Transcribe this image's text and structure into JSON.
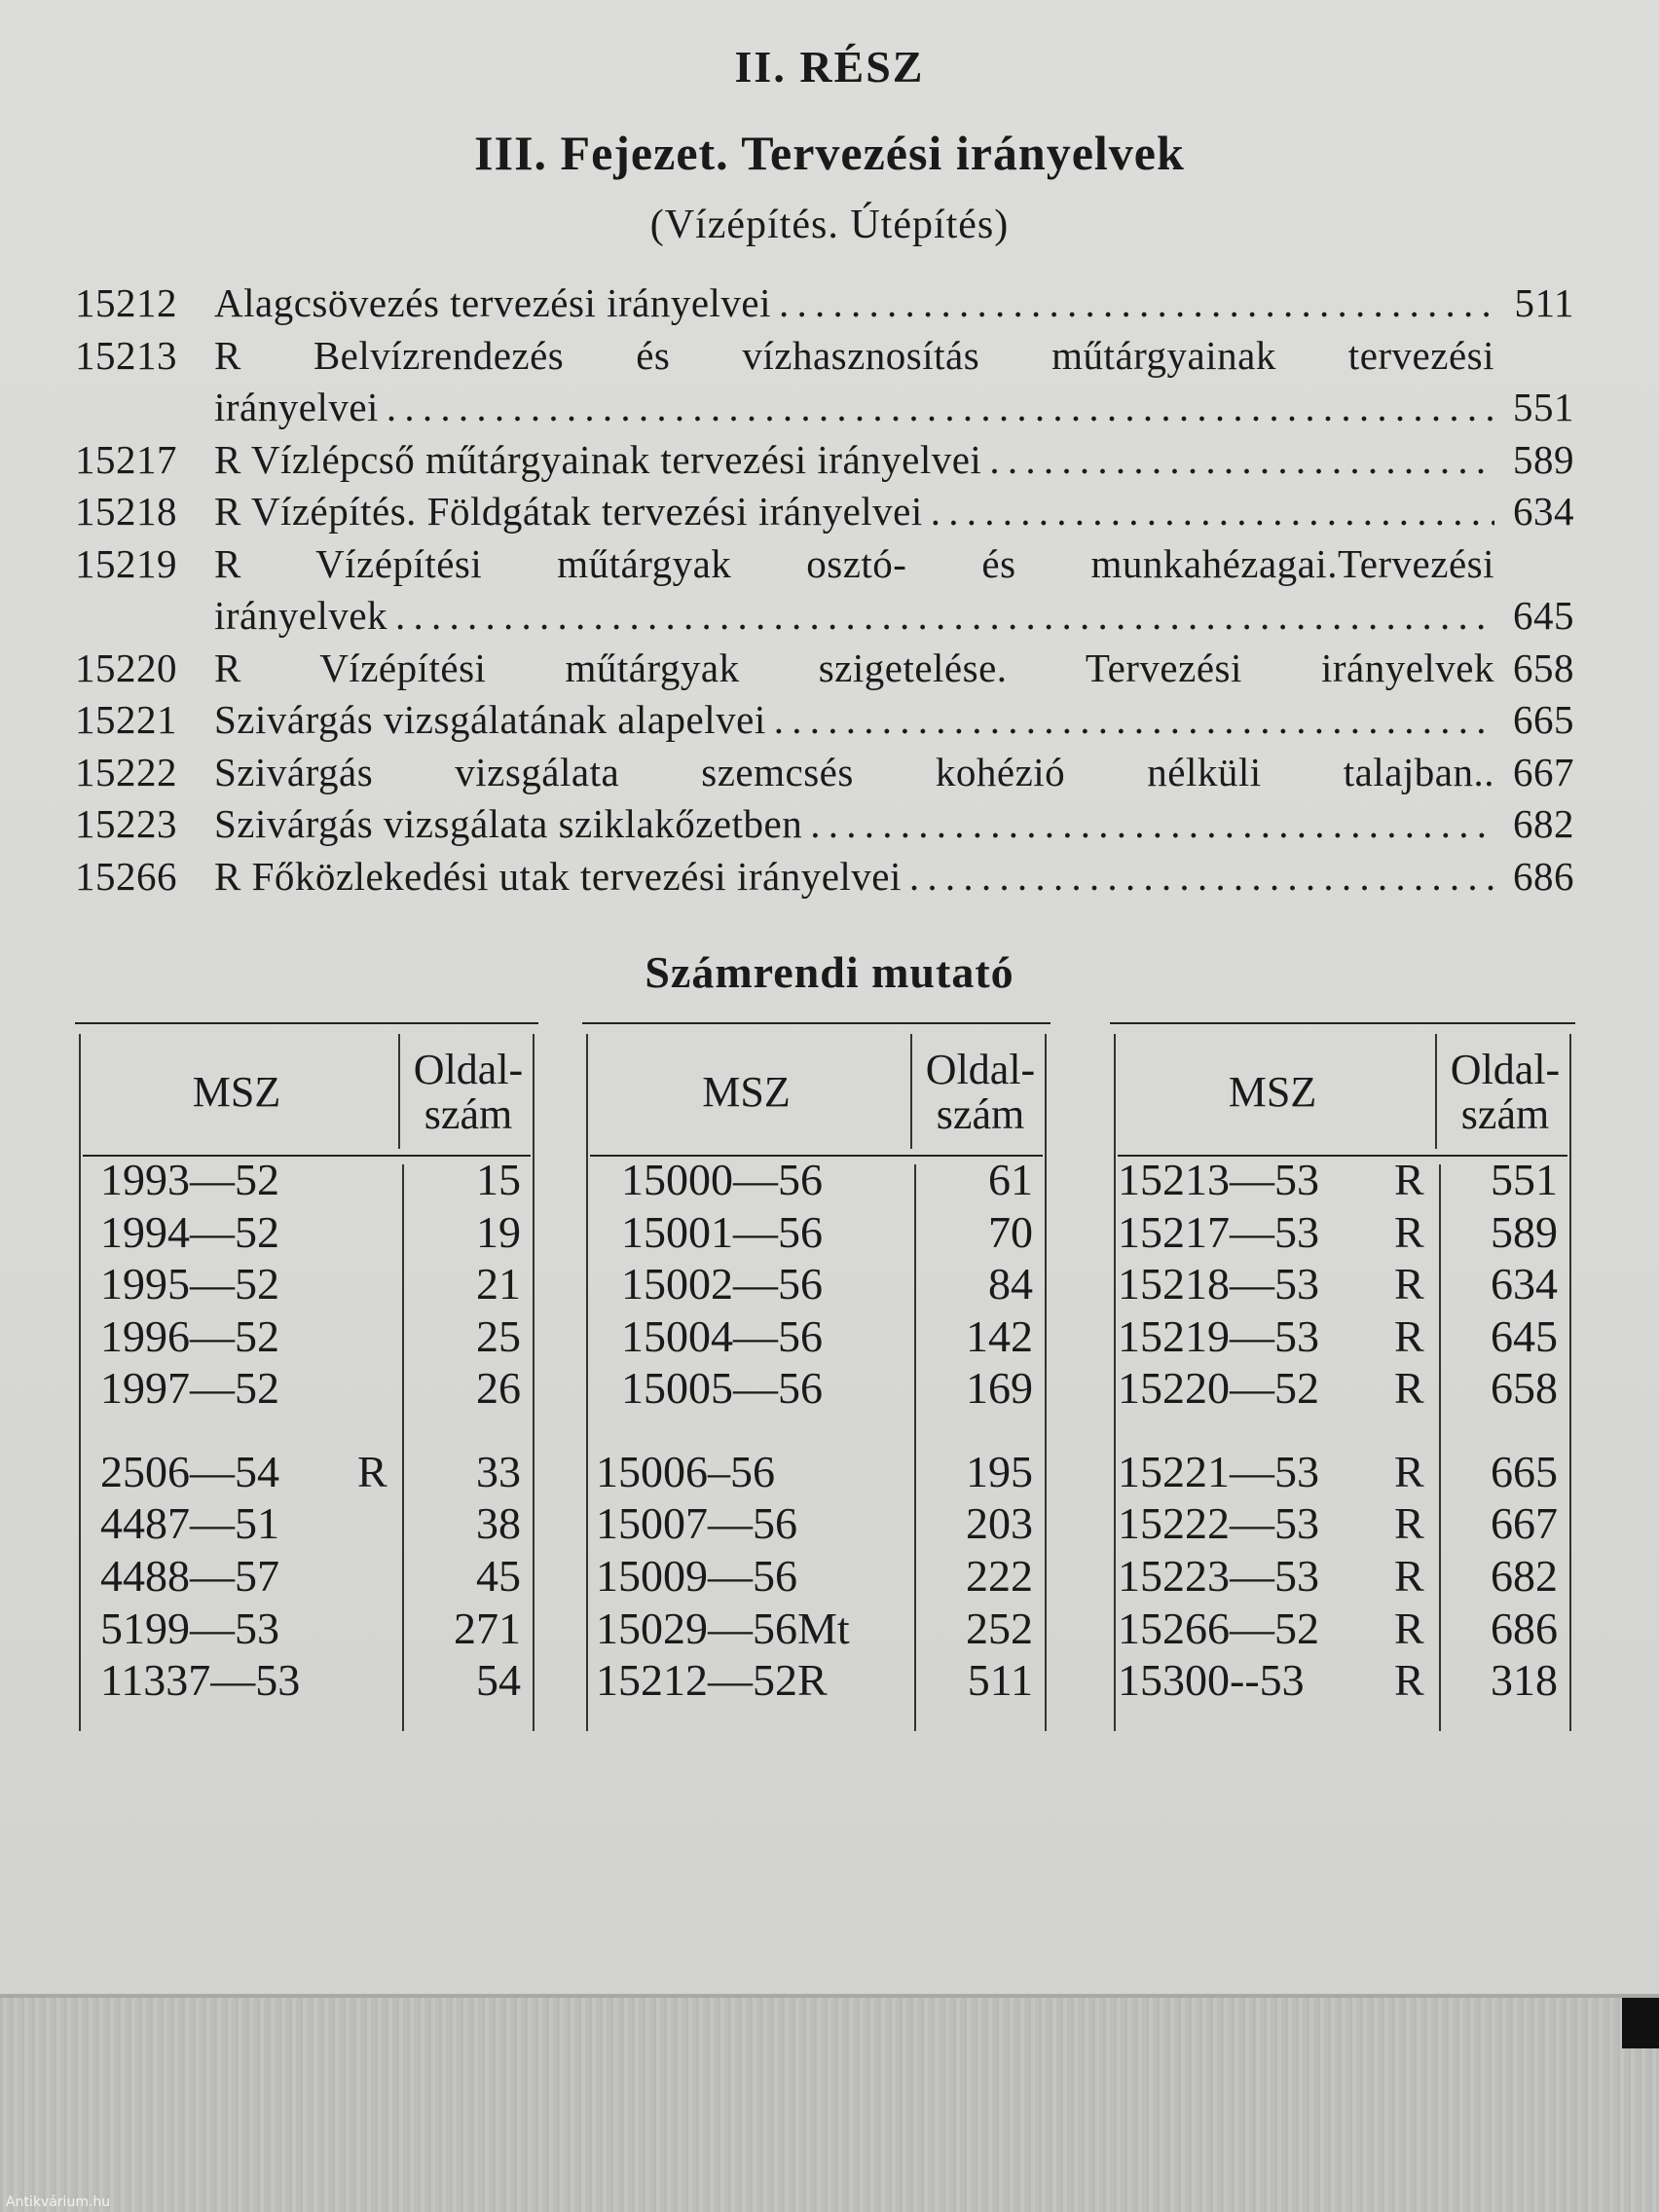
{
  "header": {
    "part": "II. RÉSZ",
    "chapter": "III. Fejezet. Tervezési irányelvek",
    "subtitle": "(Vízépítés. Útépítés)"
  },
  "toc": [
    {
      "number": "15212",
      "lines": [
        "Alagcsövezés tervezési irányelvei"
      ],
      "page": "511"
    },
    {
      "number": "15213",
      "lines": [
        "R Belvízrendezés és vízhasznosítás műtárgyainak tervezési",
        "irányelvei"
      ],
      "page": "551"
    },
    {
      "number": "15217",
      "lines": [
        "R Vízlépcső műtárgyainak tervezési irányelvei"
      ],
      "page": "589"
    },
    {
      "number": "15218",
      "lines": [
        "R Vízépítés. Földgátak tervezési irányelvei"
      ],
      "page": "634"
    },
    {
      "number": "15219",
      "lines": [
        "R Vízépítési műtárgyak osztó- és munkahézagai.Tervezési",
        "irányelvek"
      ],
      "page": "645"
    },
    {
      "number": "15220",
      "lines": [
        "R Vízépítési műtárgyak szigetelése. Tervezési irányelvek"
      ],
      "page": "658",
      "nodots": true
    },
    {
      "number": "15221",
      "lines": [
        "Szivárgás vizsgálatának alapelvei"
      ],
      "page": "665"
    },
    {
      "number": "15222",
      "lines": [
        "Szivárgás vizsgálata szemcsés kohézió nélküli talajban.."
      ],
      "page": "667",
      "nodots": true
    },
    {
      "number": "15223",
      "lines": [
        "Szivárgás vizsgálata sziklakőzetben"
      ],
      "page": "682"
    },
    {
      "number": "15266",
      "lines": [
        "R Főközlekedési utak tervezési irányelvei"
      ],
      "page": "686"
    }
  ],
  "index": {
    "title": "Számrendi mutató",
    "col_msz": "MSZ",
    "col_page": "Oldal-\nszám",
    "tables": [
      [
        {
          "msz": "1993—52",
          "flag": "",
          "page": "15"
        },
        {
          "msz": "1994—52",
          "flag": "",
          "page": "19"
        },
        {
          "msz": "1995—52",
          "flag": "",
          "page": "21"
        },
        {
          "msz": "1996—52",
          "flag": "",
          "page": "25"
        },
        {
          "msz": "1997—52",
          "flag": "",
          "page": "26"
        },
        {
          "msz": "2506—54",
          "flag": "R",
          "page": "33"
        },
        {
          "msz": "4487—51",
          "flag": "",
          "page": "38"
        },
        {
          "msz": "4488—57",
          "flag": "",
          "page": "45"
        },
        {
          "msz": "5199—53",
          "flag": "",
          "page": "271"
        },
        {
          "msz": "11337—53",
          "flag": "",
          "page": "54"
        }
      ],
      [
        {
          "msz": "15000—56",
          "flag": "",
          "page": "61"
        },
        {
          "msz": "15001—56",
          "flag": "",
          "page": "70"
        },
        {
          "msz": "15002—56",
          "flag": "",
          "page": "84"
        },
        {
          "msz": "15004—56",
          "flag": "",
          "page": "142"
        },
        {
          "msz": "15005—56",
          "flag": "",
          "page": "169"
        },
        {
          "msz": "15006–56",
          "flag": "",
          "page": "195"
        },
        {
          "msz": "15007—56",
          "flag": "",
          "page": "203"
        },
        {
          "msz": "15009—56",
          "flag": "",
          "page": "222"
        },
        {
          "msz": "15029—56Mt",
          "flag": "",
          "page": "252"
        },
        {
          "msz": "15212—52R",
          "flag": "",
          "page": "511"
        }
      ],
      [
        {
          "msz": "15213—53",
          "flag": "R",
          "page": "551"
        },
        {
          "msz": "15217—53",
          "flag": "R",
          "page": "589"
        },
        {
          "msz": "15218—53",
          "flag": "R",
          "page": "634"
        },
        {
          "msz": "15219—53",
          "flag": "R",
          "page": "645"
        },
        {
          "msz": "15220—52",
          "flag": "R",
          "page": "658"
        },
        {
          "msz": "15221—53",
          "flag": "R",
          "page": "665"
        },
        {
          "msz": "15222—53",
          "flag": "R",
          "page": "667"
        },
        {
          "msz": "15223—53",
          "flag": "R",
          "page": "682"
        },
        {
          "msz": "15266—52",
          "flag": "R",
          "page": "686"
        },
        {
          "msz": "15300--53",
          "flag": "R",
          "page": "318"
        }
      ]
    ]
  },
  "watermark": "Antikvárium.hu"
}
